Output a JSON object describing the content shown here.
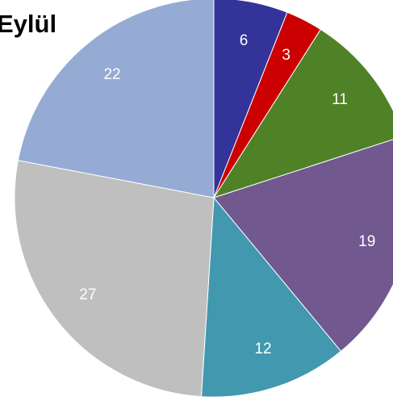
{
  "chart_data": {
    "type": "pie",
    "title": "Eylül",
    "values": [
      6,
      3,
      11,
      19,
      12,
      27,
      22
    ],
    "colors": [
      "#333399",
      "#cc0000",
      "#4f8127",
      "#71588f",
      "#4198af",
      "#bfbfbf",
      "#95abd4"
    ]
  }
}
